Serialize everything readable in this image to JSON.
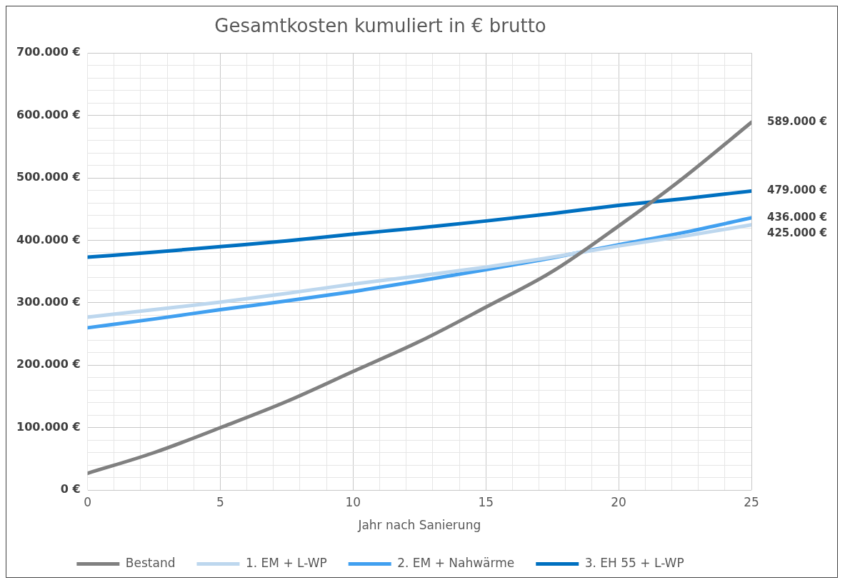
{
  "chart_data": {
    "type": "line",
    "title": "Gesamtkosten kumuliert in € brutto",
    "xlabel": "Jahr nach Sanierung",
    "x": [
      0,
      2.5,
      5,
      7.5,
      10,
      12.5,
      15,
      17.5,
      20,
      22.5,
      25
    ],
    "series": [
      {
        "name": "Bestand",
        "color": "#808080",
        "values": [
          27000,
          60000,
          100000,
          142000,
          190000,
          238000,
          293000,
          350000,
          423000,
          502000,
          589000
        ],
        "value_labels": [
          null,
          null,
          null,
          null,
          null,
          null,
          null,
          null,
          null,
          null,
          "589.000 €"
        ]
      },
      {
        "name": "1. EM + L-WP",
        "color": "#bdd7ee",
        "values": [
          277000,
          289000,
          301000,
          315000,
          330000,
          343000,
          357000,
          373000,
          391000,
          407000,
          425000
        ],
        "value_labels": [
          null,
          null,
          null,
          null,
          null,
          null,
          null,
          null,
          null,
          null,
          "425.000 €"
        ]
      },
      {
        "name": "2. EM + Nahwärme",
        "color": "#41a0f0",
        "values": [
          260000,
          274000,
          289000,
          303000,
          318000,
          335000,
          353000,
          372000,
          393000,
          413000,
          436000
        ],
        "value_labels": [
          null,
          null,
          null,
          null,
          null,
          null,
          null,
          null,
          null,
          null,
          "436.000 €"
        ]
      },
      {
        "name": "3. EH 55 + L-WP",
        "color": "#0070c0",
        "values": [
          373000,
          381000,
          390000,
          399000,
          410000,
          420000,
          431000,
          443000,
          456000,
          467000,
          479000
        ],
        "value_labels": [
          null,
          null,
          null,
          null,
          null,
          null,
          null,
          null,
          null,
          null,
          "479.000 €"
        ]
      }
    ],
    "xlim": [
      0,
      25
    ],
    "xticks": [
      0,
      {
        "value": 1,
        "label": null
      },
      {
        "value": 2,
        "label": null
      },
      {
        "value": 3,
        "label": null
      },
      {
        "value": 4,
        "label": null
      },
      5,
      {
        "value": 6,
        "label": null
      },
      {
        "value": 7,
        "label": null
      },
      {
        "value": 8,
        "label": null
      },
      {
        "value": 9,
        "label": null
      },
      10,
      {
        "value": 11,
        "label": null
      },
      {
        "value": 12,
        "label": null
      },
      {
        "value": 13,
        "label": null
      },
      {
        "value": 14,
        "label": null
      },
      15,
      {
        "value": 16,
        "label": null
      },
      {
        "value": 17,
        "label": null
      },
      {
        "value": 18,
        "label": null
      },
      {
        "value": 19,
        "label": null
      },
      20,
      {
        "value": 21,
        "label": null
      },
      {
        "value": 22,
        "label": null
      },
      {
        "value": 23,
        "label": null
      },
      {
        "value": 24,
        "label": null
      },
      25
    ],
    "ylim": [
      0,
      700000
    ],
    "yticks": [
      {
        "value": 0,
        "label": "0 €"
      },
      {
        "value": 20000,
        "label": null
      },
      {
        "value": 40000,
        "label": null
      },
      {
        "value": 60000,
        "label": null
      },
      {
        "value": 80000,
        "label": null
      },
      {
        "value": 100000,
        "label": "100.000 €"
      },
      {
        "value": 120000,
        "label": null
      },
      {
        "value": 140000,
        "label": null
      },
      {
        "value": 160000,
        "label": null
      },
      {
        "value": 180000,
        "label": null
      },
      {
        "value": 200000,
        "label": "200.000 €"
      },
      {
        "value": 220000,
        "label": null
      },
      {
        "value": 240000,
        "label": null
      },
      {
        "value": 260000,
        "label": null
      },
      {
        "value": 280000,
        "label": null
      },
      {
        "value": 300000,
        "label": "300.000 €"
      },
      {
        "value": 320000,
        "label": null
      },
      {
        "value": 340000,
        "label": null
      },
      {
        "value": 360000,
        "label": null
      },
      {
        "value": 380000,
        "label": null
      },
      {
        "value": 400000,
        "label": "400.000 €"
      },
      {
        "value": 420000,
        "label": null
      },
      {
        "value": 440000,
        "label": null
      },
      {
        "value": 460000,
        "label": null
      },
      {
        "value": 480000,
        "label": null
      },
      {
        "value": 500000,
        "label": "500.000 €"
      },
      {
        "value": 520000,
        "label": null
      },
      {
        "value": 540000,
        "label": null
      },
      {
        "value": 560000,
        "label": null
      },
      {
        "value": 580000,
        "label": null
      },
      {
        "value": 600000,
        "label": "600.000 €"
      },
      {
        "value": 620000,
        "label": null
      },
      {
        "value": 640000,
        "label": null
      },
      {
        "value": 660000,
        "label": null
      },
      {
        "value": 680000,
        "label": null
      },
      {
        "value": 700000,
        "label": "700.000 €"
      }
    ],
    "grid": true,
    "legend": "bottom",
    "marker": "none",
    "line_style": "solid"
  }
}
